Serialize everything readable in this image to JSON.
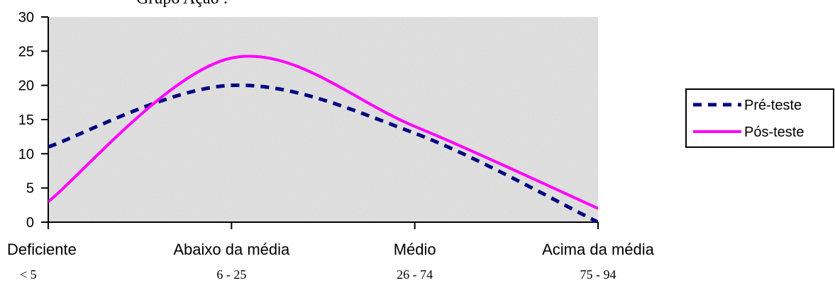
{
  "chart_data": {
    "type": "line",
    "title": "Grupo Ação :",
    "categories": [
      "Deficiente",
      "Abaixo da média",
      "Médio",
      "Acima da média"
    ],
    "category_ranges": [
      "< 5",
      "6 - 25",
      "26 - 74",
      "75 - 94"
    ],
    "ylim": [
      0,
      30
    ],
    "yticks": [
      0,
      5,
      10,
      15,
      20,
      25,
      30
    ],
    "grid": false,
    "legend_position": "right",
    "series": [
      {
        "name": "Pré-teste",
        "values": [
          11,
          20,
          13,
          0
        ],
        "color": "#000080",
        "style": "dashed",
        "smooth": true
      },
      {
        "name": "Pós-teste",
        "values": [
          3,
          24,
          14,
          2
        ],
        "color": "#FF00FF",
        "style": "solid",
        "smooth": true
      }
    ]
  }
}
